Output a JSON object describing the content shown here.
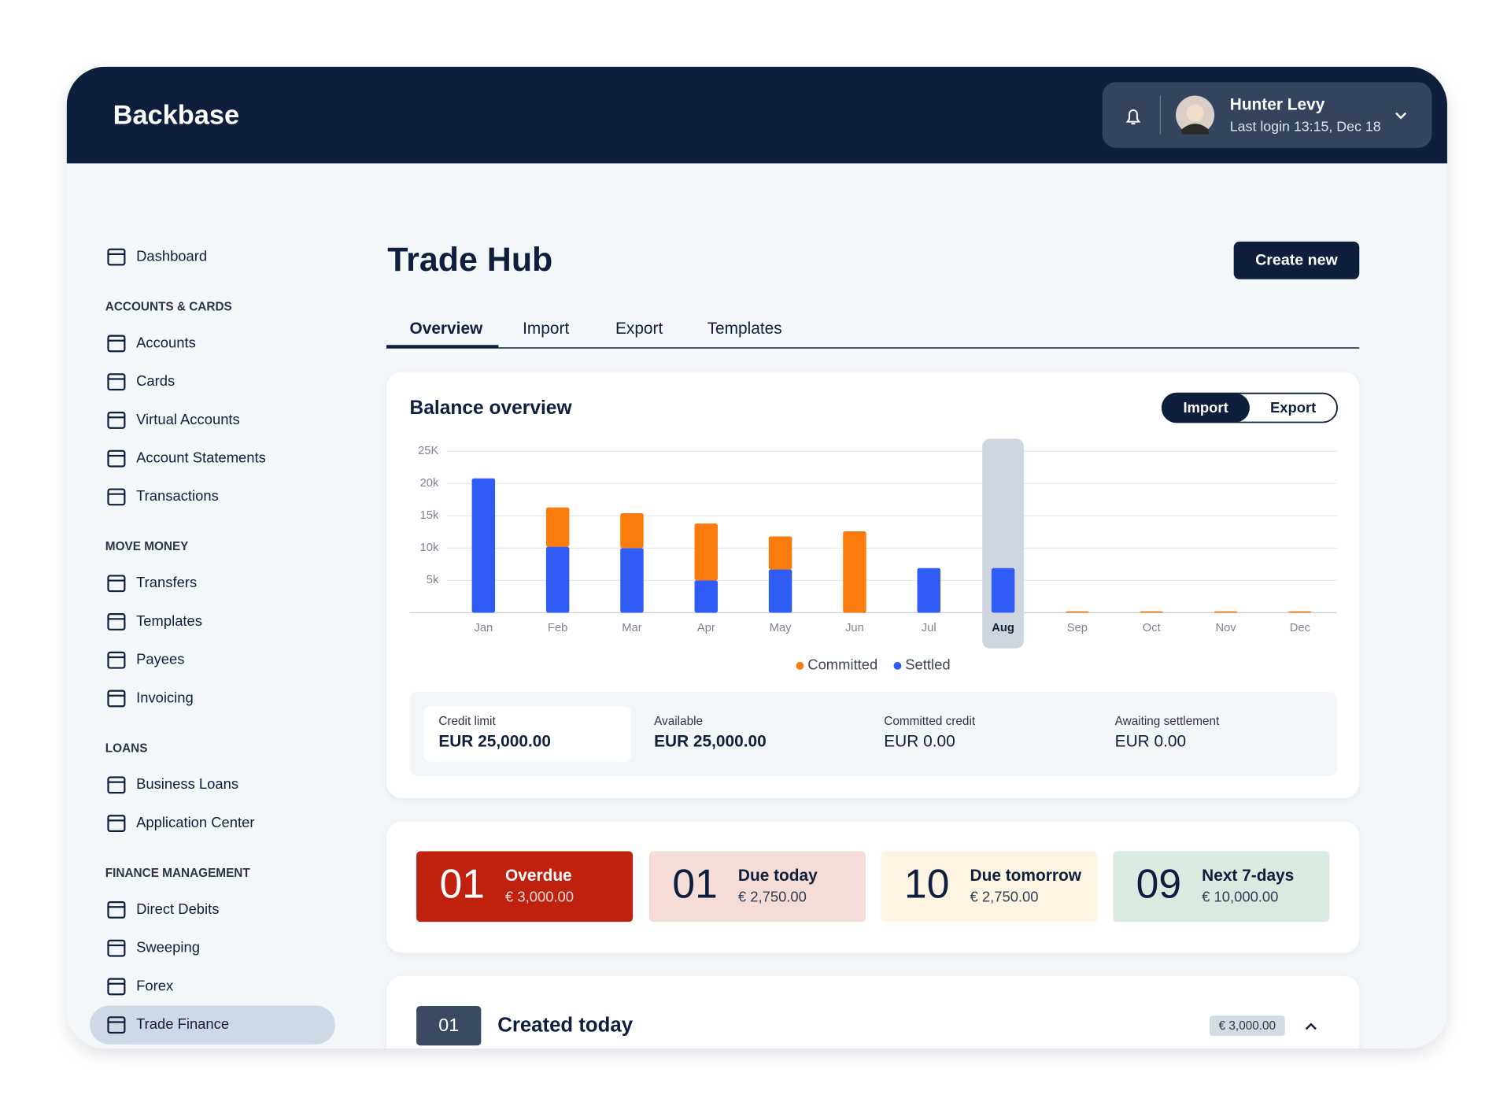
{
  "header": {
    "logo": "Backbase",
    "user": {
      "name": "Hunter Levy",
      "last_login": "Last login 13:15, Dec 18"
    }
  },
  "sidebar": {
    "top": "Dashboard",
    "sections": [
      {
        "heading": "ACCOUNTS & CARDS",
        "items": [
          "Accounts",
          "Cards",
          "Virtual Accounts",
          "Account Statements",
          "Transactions"
        ]
      },
      {
        "heading": "MOVE MONEY",
        "items": [
          "Transfers",
          "Templates",
          "Payees",
          "Invoicing"
        ]
      },
      {
        "heading": "LOANS",
        "items": [
          "Business Loans",
          "Application Center"
        ]
      },
      {
        "heading": "FINANCE MANAGEMENT",
        "items": [
          "Direct Debits",
          "Sweeping",
          "Forex",
          "Trade Finance"
        ]
      }
    ],
    "active": "Trade Finance"
  },
  "page": {
    "title": "Trade Hub",
    "button": "Create new",
    "tabs": [
      "Overview",
      "Import",
      "Export",
      "Templates"
    ],
    "active_tab": "Overview"
  },
  "balance": {
    "toggle": [
      "Import",
      "Export"
    ],
    "active_toggle": "Import",
    "stats": [
      {
        "label": "Credit limit",
        "value": "EUR 25,000.00"
      },
      {
        "label": "Available",
        "value": "EUR 25,000.00"
      },
      {
        "label": "Committed credit",
        "value": "EUR 0.00"
      },
      {
        "label": "Awaiting settlement",
        "value": "EUR 0.00"
      }
    ]
  },
  "chart_data": {
    "type": "bar",
    "stacked": true,
    "title": "Balance overview",
    "categories": [
      "Jan",
      "Feb",
      "Mar",
      "Apr",
      "May",
      "Jun",
      "Jul",
      "Aug",
      "Sep",
      "Oct",
      "Nov",
      "Dec"
    ],
    "series": [
      {
        "name": "Committed",
        "color": "#fb7c0c",
        "values": [
          0,
          6100,
          5400,
          8800,
          5100,
          12600,
          0,
          0,
          200,
          200,
          200,
          200
        ]
      },
      {
        "name": "Settled",
        "color": "#2f5cf5",
        "values": [
          20800,
          10200,
          10000,
          5000,
          6700,
          0,
          6900,
          6900,
          0,
          0,
          0,
          0
        ]
      }
    ],
    "highlighted_category": "Aug",
    "ylim": [
      0,
      25000
    ],
    "yticks": [
      {
        "value": 5000,
        "label": "5k"
      },
      {
        "value": 10000,
        "label": "10k"
      },
      {
        "value": 15000,
        "label": "15k"
      },
      {
        "value": 20000,
        "label": "20k"
      },
      {
        "value": 25000,
        "label": "25K"
      }
    ],
    "grid": true
  },
  "due": [
    {
      "count": "01",
      "label": "Overdue",
      "amount": "€ 3,000.00",
      "color": "#c0210f",
      "text_color": "#ffffff"
    },
    {
      "count": "01",
      "label": "Due today",
      "amount": "€ 2,750.00",
      "color": "#f5dcd7",
      "text_color": "#0d1f3c"
    },
    {
      "count": "10",
      "label": "Due tomorrow",
      "amount": "€ 2,750.00",
      "color": "#fdf5e2",
      "text_color": "#0d1f3c"
    },
    {
      "count": "09",
      "label": "Next 7-days",
      "amount": "€ 10,000.00",
      "color": "#d9ebe0",
      "text_color": "#0d1f3c"
    }
  ],
  "created": {
    "count": "01",
    "title": "Created today",
    "amount": "€ 3,000.00"
  }
}
